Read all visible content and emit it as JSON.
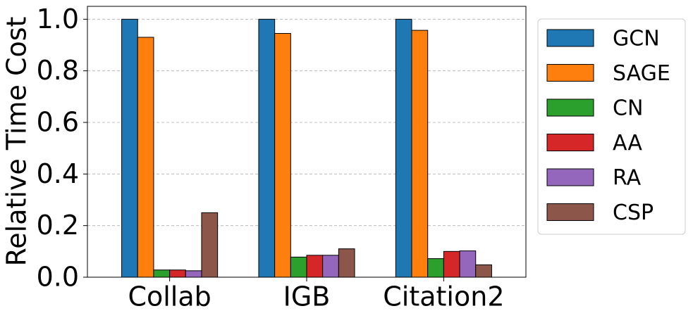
{
  "chart_data": {
    "type": "bar",
    "ylabel": "Relative Time Cost",
    "categories": [
      "Collab",
      "IGB",
      "Citation2"
    ],
    "series": [
      {
        "name": "GCN",
        "color": "#1f77b4",
        "values": [
          1.0,
          1.0,
          1.0
        ]
      },
      {
        "name": "SAGE",
        "color": "#ff7f0e",
        "values": [
          0.93,
          0.945,
          0.957
        ]
      },
      {
        "name": "CN",
        "color": "#2ca02c",
        "values": [
          0.028,
          0.078,
          0.072
        ]
      },
      {
        "name": "AA",
        "color": "#d62728",
        "values": [
          0.028,
          0.085,
          0.1
        ]
      },
      {
        "name": "RA",
        "color": "#9467bd",
        "values": [
          0.025,
          0.085,
          0.102
        ]
      },
      {
        "name": "CSP",
        "color": "#8c564b",
        "values": [
          0.25,
          0.11,
          0.048
        ]
      }
    ],
    "ylim": [
      0,
      1.05
    ],
    "yticks": [
      {
        "value": 0,
        "label": "0.0"
      },
      0.2,
      0.4,
      0.6,
      0.8,
      {
        "value": 1,
        "label": "1.0"
      }
    ],
    "grid": true,
    "legend": "outside right"
  }
}
